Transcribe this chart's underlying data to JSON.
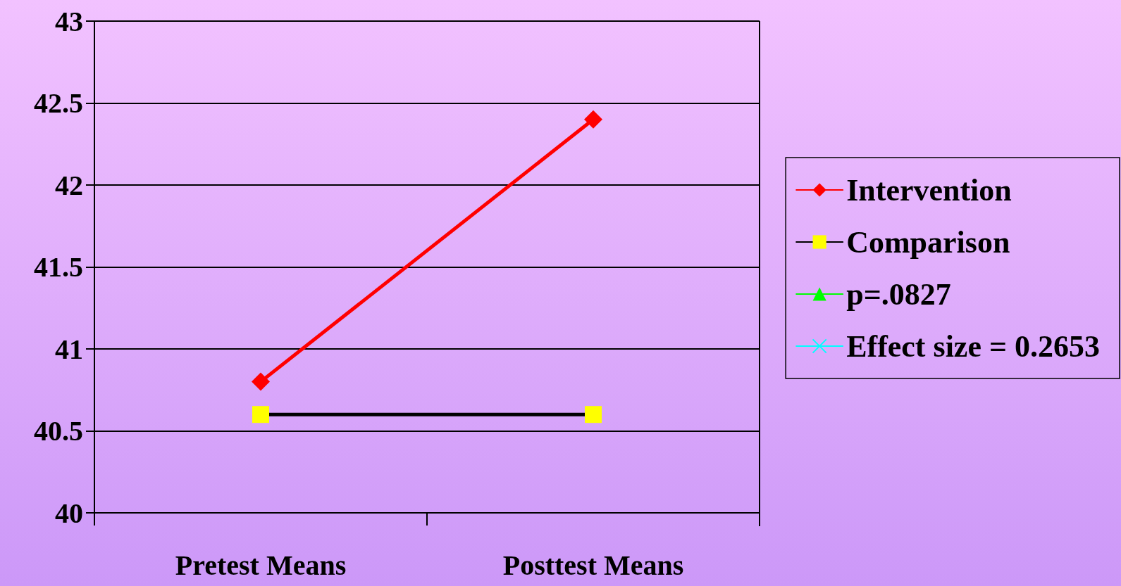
{
  "chart_data": {
    "type": "line",
    "categories": [
      "Pretest Means",
      "Posttest Means"
    ],
    "series": [
      {
        "name": "Intervention",
        "color": "#ff0000",
        "values": [
          40.8,
          42.4
        ],
        "marker": "diamond"
      },
      {
        "name": "Comparison",
        "color": "#000000",
        "colors": [
          "#ffff00",
          "#ffff00"
        ],
        "values": [
          40.6,
          40.6
        ],
        "marker": "square"
      },
      {
        "name": "p=.0827",
        "color": "#00ff00",
        "values": [
          null,
          null
        ],
        "marker": "triangle"
      },
      {
        "name": "Effect size = 0.2653",
        "color": "#00ffff",
        "values": [
          null,
          null
        ],
        "marker": "cross"
      }
    ],
    "ylim": [
      40,
      43
    ],
    "yticks": [
      40,
      40.5,
      41,
      41.5,
      42,
      42.5,
      43
    ],
    "grid": "y",
    "legend": "right",
    "line_style": "solid"
  }
}
